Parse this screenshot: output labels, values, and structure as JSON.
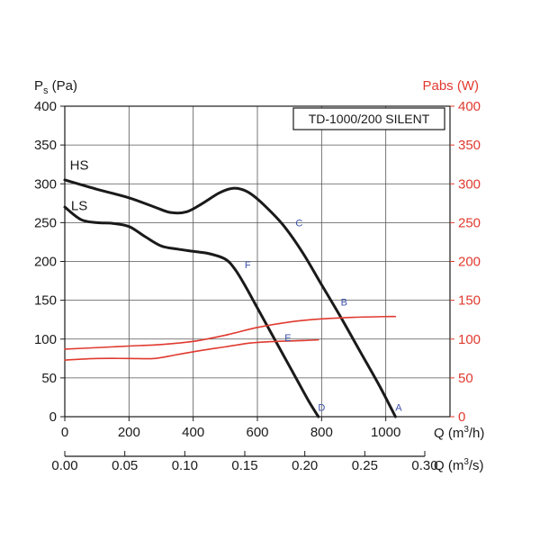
{
  "chart_data": {
    "type": "line",
    "title": "TD-1000/200 SILENT",
    "ylabel_left": {
      "main": "P",
      "sub": "s",
      "unit": " (Pa)"
    },
    "ylabel_right": "Pabs (W)",
    "xlabel_primary": {
      "main": "Q (m",
      "sup": "3",
      "rest": "/h)"
    },
    "xlabel_secondary": {
      "main": "Q (m",
      "sup": "3",
      "rest": "/s)"
    },
    "xlim": [
      0,
      1200
    ],
    "ylim_left": [
      0,
      400
    ],
    "ylim_right": [
      0,
      400
    ],
    "x_ticks": [
      "0",
      "200",
      "400",
      "600",
      "800",
      "1000"
    ],
    "x_tick_values": [
      0,
      200,
      400,
      600,
      800,
      1000
    ],
    "x2_ticks": [
      "0.00",
      "0.05",
      "0.10",
      "0.15",
      "0.20",
      "0.25",
      "0.30"
    ],
    "x2_tick_values": [
      0,
      0.05,
      0.1,
      0.15,
      0.2,
      0.25,
      0.3
    ],
    "y_ticks_left": [
      "0",
      "50",
      "100",
      "150",
      "200",
      "250",
      "300",
      "350",
      "400"
    ],
    "y_ticks_right": [
      "0",
      "50",
      "100",
      "150",
      "200",
      "250",
      "300",
      "350",
      "400"
    ],
    "y_tick_values": [
      0,
      50,
      100,
      150,
      200,
      250,
      300,
      350,
      400
    ],
    "grid": true,
    "series": [
      {
        "name": "HS",
        "axis": "left",
        "color": "#1a1a1a",
        "x": [
          0,
          100,
          200,
          280,
          330,
          380,
          430,
          480,
          520,
          550,
          580,
          620,
          680,
          740,
          800,
          860,
          920,
          980,
          1030
        ],
        "y": [
          305,
          293,
          282,
          270,
          263,
          264,
          275,
          288,
          294,
          293,
          287,
          273,
          247,
          212,
          170,
          128,
          84,
          40,
          0
        ]
      },
      {
        "name": "LS",
        "axis": "left",
        "color": "#1a1a1a",
        "x": [
          0,
          50,
          100,
          150,
          200,
          250,
          300,
          350,
          400,
          450,
          500,
          530,
          560,
          600,
          640,
          680,
          720,
          760,
          790
        ],
        "y": [
          270,
          254,
          250,
          249,
          245,
          232,
          220,
          216,
          213,
          210,
          203,
          190,
          170,
          140,
          110,
          80,
          50,
          20,
          0
        ]
      },
      {
        "name": "",
        "axis": "right",
        "color": "#e03a2f",
        "x": [
          0,
          100,
          200,
          300,
          400,
          500,
          600,
          700,
          800,
          900,
          1000,
          1030
        ],
        "y": [
          87,
          89,
          91,
          93,
          97,
          105,
          115,
          122,
          126,
          128,
          129,
          129
        ]
      },
      {
        "name": "",
        "axis": "right",
        "color": "#e03a2f",
        "x": [
          0,
          100,
          200,
          280,
          350,
          420,
          500,
          580,
          660,
          740,
          790
        ],
        "y": [
          73,
          75,
          75,
          75,
          80,
          85,
          90,
          95,
          97,
          98,
          99
        ]
      }
    ],
    "point_labels": [
      {
        "label": "A",
        "x": 1040,
        "y": 12
      },
      {
        "label": "B",
        "x": 870,
        "y": 148
      },
      {
        "label": "C",
        "x": 730,
        "y": 250
      },
      {
        "label": "D",
        "x": 800,
        "y": 12
      },
      {
        "label": "E",
        "x": 695,
        "y": 102
      },
      {
        "label": "F",
        "x": 570,
        "y": 196
      }
    ],
    "curve_labels": [
      {
        "label": "HS",
        "x": 45,
        "y": 318
      },
      {
        "label": "LS",
        "x": 45,
        "y": 266
      }
    ]
  }
}
